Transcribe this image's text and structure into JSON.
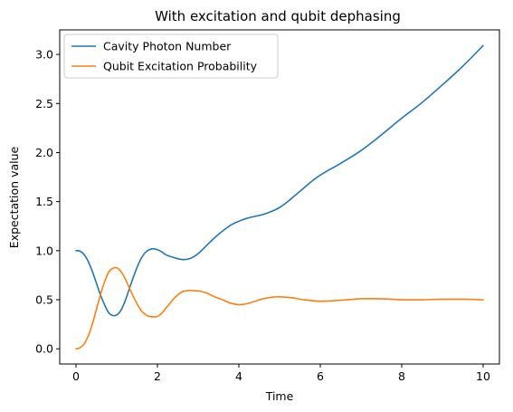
{
  "chart_data": {
    "type": "line",
    "title": "With excitation and qubit dephasing",
    "xlabel": "Time",
    "ylabel": "Expectation value",
    "xlim": [
      -0.4,
      10.4
    ],
    "ylim": [
      -0.155,
      3.25
    ],
    "xticks": [
      0,
      2,
      4,
      6,
      8,
      10
    ],
    "xtick_labels": [
      "0",
      "2",
      "4",
      "6",
      "8",
      "10"
    ],
    "yticks": [
      0.0,
      0.5,
      1.0,
      1.5,
      2.0,
      2.5,
      3.0
    ],
    "ytick_labels": [
      "0.0",
      "0.5",
      "1.0",
      "1.5",
      "2.0",
      "2.5",
      "3.0"
    ],
    "grid": false,
    "legend_position": "upper-left",
    "series": [
      {
        "name": "Cavity Photon Number",
        "color": "#1f77b4",
        "x": [
          0,
          0.1,
          0.2,
          0.3,
          0.4,
          0.5,
          0.6,
          0.7,
          0.8,
          0.9,
          1.0,
          1.1,
          1.2,
          1.3,
          1.4,
          1.5,
          1.6,
          1.7,
          1.8,
          1.9,
          2.0,
          2.1,
          2.2,
          2.4,
          2.6,
          2.8,
          3.0,
          3.2,
          3.4,
          3.6,
          3.8,
          4.0,
          4.2,
          4.4,
          4.6,
          4.8,
          5.0,
          5.2,
          5.4,
          5.6,
          5.8,
          6.0,
          6.2,
          6.5,
          7.0,
          7.5,
          8.0,
          8.5,
          9.0,
          9.5,
          10.0
        ],
        "values": [
          1.0,
          0.995,
          0.96,
          0.89,
          0.79,
          0.67,
          0.55,
          0.45,
          0.37,
          0.34,
          0.345,
          0.39,
          0.48,
          0.6,
          0.72,
          0.83,
          0.92,
          0.98,
          1.01,
          1.02,
          1.01,
          0.99,
          0.96,
          0.93,
          0.91,
          0.92,
          0.97,
          1.05,
          1.13,
          1.2,
          1.26,
          1.3,
          1.33,
          1.35,
          1.37,
          1.4,
          1.44,
          1.5,
          1.57,
          1.64,
          1.71,
          1.77,
          1.82,
          1.89,
          2.02,
          2.18,
          2.35,
          2.51,
          2.69,
          2.88,
          3.09
        ]
      },
      {
        "name": "Qubit Excitation Probability",
        "color": "#ff7f0e",
        "x": [
          0,
          0.1,
          0.2,
          0.3,
          0.4,
          0.5,
          0.6,
          0.7,
          0.8,
          0.9,
          1.0,
          1.1,
          1.2,
          1.3,
          1.4,
          1.5,
          1.6,
          1.7,
          1.8,
          1.9,
          2.0,
          2.1,
          2.2,
          2.3,
          2.4,
          2.5,
          2.6,
          2.7,
          2.8,
          2.9,
          3.0,
          3.2,
          3.4,
          3.6,
          3.8,
          4.0,
          4.2,
          4.4,
          4.6,
          4.8,
          5.0,
          5.3,
          5.6,
          6.0,
          6.5,
          7.0,
          7.5,
          8.0,
          8.5,
          9.0,
          9.5,
          10.0
        ],
        "values": [
          0.0,
          0.01,
          0.05,
          0.13,
          0.25,
          0.4,
          0.55,
          0.68,
          0.78,
          0.82,
          0.825,
          0.79,
          0.72,
          0.63,
          0.54,
          0.46,
          0.39,
          0.35,
          0.33,
          0.325,
          0.33,
          0.36,
          0.41,
          0.46,
          0.51,
          0.55,
          0.58,
          0.59,
          0.595,
          0.592,
          0.59,
          0.57,
          0.53,
          0.5,
          0.465,
          0.45,
          0.46,
          0.485,
          0.51,
          0.525,
          0.53,
          0.52,
          0.5,
          0.485,
          0.495,
          0.51,
          0.51,
          0.5,
          0.5,
          0.505,
          0.505,
          0.5
        ]
      }
    ]
  }
}
